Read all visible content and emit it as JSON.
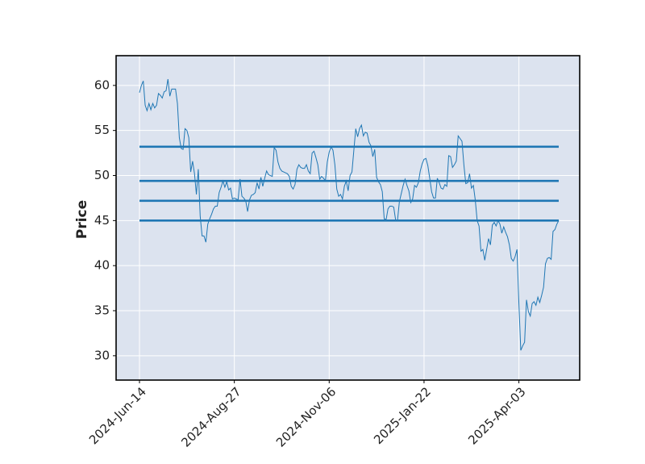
{
  "chart_data": {
    "type": "line",
    "ylabel": "Price",
    "categories": [
      "2024-Jun-14",
      null,
      null,
      null,
      null,
      null,
      null,
      null,
      null,
      null,
      null,
      null,
      null,
      null,
      null,
      null,
      null,
      null,
      null,
      null,
      null,
      null,
      null,
      null,
      null,
      null,
      null,
      null,
      null,
      null,
      null,
      null,
      null,
      null,
      null,
      null,
      null,
      null,
      null,
      null,
      null,
      null,
      null,
      null,
      null,
      null,
      null,
      null,
      null,
      null,
      "2024-Aug-27",
      null,
      null,
      null,
      null,
      null,
      null,
      null,
      null,
      null,
      null,
      null,
      null,
      null,
      null,
      null,
      null,
      null,
      null,
      null,
      null,
      null,
      null,
      null,
      null,
      null,
      null,
      null,
      null,
      null,
      null,
      null,
      null,
      null,
      null,
      null,
      null,
      null,
      null,
      null,
      null,
      null,
      null,
      null,
      null,
      null,
      null,
      null,
      null,
      null,
      "2024-Nov-06",
      null,
      null,
      null,
      null,
      null,
      null,
      null,
      null,
      null,
      null,
      null,
      null,
      null,
      null,
      null,
      null,
      null,
      null,
      null,
      null,
      null,
      null,
      null,
      null,
      null,
      null,
      null,
      null,
      null,
      null,
      null,
      null,
      null,
      null,
      null,
      null,
      null,
      null,
      null,
      null,
      null,
      null,
      null,
      null,
      null,
      null,
      null,
      null,
      null,
      "2025-Jan-22",
      null,
      null,
      null,
      null,
      null,
      null,
      null,
      null,
      null,
      null,
      null,
      null,
      null,
      null,
      null,
      null,
      null,
      null,
      null,
      null,
      null,
      null,
      null,
      null,
      null,
      null,
      null,
      null,
      null,
      null,
      null,
      null,
      null,
      null,
      null,
      null,
      null,
      null,
      null,
      null,
      null,
      null,
      null,
      null,
      null,
      null,
      null,
      null,
      null,
      "2025-Apr-03",
      null,
      null,
      null,
      null,
      null,
      null,
      null,
      null,
      null,
      null,
      null,
      null,
      null,
      null,
      null,
      null,
      null,
      null,
      null,
      null,
      null
    ],
    "series": [
      {
        "color": "#1f77b4",
        "values": [
          59.2,
          60.0,
          60.5,
          57.8,
          57.2,
          58.0,
          57.3,
          58.0,
          57.5,
          57.8,
          59.1,
          58.9,
          58.6,
          59.3,
          59.4,
          60.7,
          58.8,
          59.6,
          59.6,
          59.6,
          58.0,
          54.2,
          53.0,
          52.9,
          55.2,
          55.0,
          54.2,
          50.4,
          51.6,
          50.2,
          47.9,
          50.7,
          45.5,
          43.3,
          43.3,
          42.6,
          44.6,
          45.2,
          45.7,
          46.3,
          46.6,
          46.6,
          48.1,
          48.7,
          49.4,
          48.7,
          49.3,
          48.4,
          48.6,
          47.4,
          47.5,
          47.4,
          47.3,
          49.6,
          47.7,
          47.5,
          47.2,
          46.0,
          47.3,
          47.8,
          47.9,
          48.1,
          49.2,
          48.5,
          49.8,
          48.8,
          49.7,
          50.5,
          50.1,
          50.0,
          49.9,
          53.1,
          52.8,
          51.5,
          50.8,
          50.5,
          50.4,
          50.3,
          50.2,
          49.9,
          48.8,
          48.5,
          49.0,
          50.7,
          51.2,
          50.9,
          50.8,
          50.8,
          51.2,
          50.5,
          50.2,
          52.5,
          52.7,
          52.0,
          51.2,
          49.6,
          49.9,
          49.7,
          49.4,
          51.5,
          52.6,
          53.2,
          52.8,
          51.2,
          48.5,
          47.7,
          47.9,
          47.4,
          48.8,
          49.4,
          48.3,
          50.0,
          50.4,
          52.8,
          55.2,
          54.3,
          55.2,
          55.6,
          54.4,
          54.8,
          54.7,
          53.7,
          53.3,
          52.1,
          52.9,
          49.8,
          49.3,
          49.0,
          48.2,
          45.2,
          45.1,
          46.3,
          46.6,
          46.6,
          46.5,
          45.1,
          45.0,
          47.1,
          48.0,
          48.9,
          49.6,
          48.9,
          48.3,
          47.0,
          47.4,
          48.9,
          48.7,
          49.2,
          50.5,
          51.3,
          51.8,
          51.9,
          51.1,
          49.7,
          48.2,
          47.5,
          47.5,
          49.7,
          49.2,
          48.6,
          48.5,
          49.0,
          48.8,
          52.2,
          52.1,
          50.9,
          51.2,
          51.6,
          54.4,
          54.1,
          53.8,
          51.2,
          49.1,
          49.2,
          50.2,
          48.6,
          48.9,
          47.3,
          45.0,
          44.4,
          41.6,
          41.8,
          40.6,
          41.8,
          43.0,
          42.3,
          44.5,
          44.8,
          44.4,
          45.0,
          44.6,
          43.6,
          44.3,
          43.7,
          43.2,
          42.3,
          40.8,
          40.5,
          41.0,
          41.8,
          35.8,
          30.6,
          31.1,
          31.5,
          36.2,
          34.9,
          34.4,
          35.8,
          36.0,
          35.6,
          36.5,
          35.9,
          36.7,
          37.6,
          40.2,
          40.8,
          40.9,
          40.7,
          43.8,
          44.0,
          44.6,
          45.0
        ]
      }
    ],
    "hlines": {
      "color": "#1f77b4",
      "values": [
        53.2,
        49.4,
        47.2,
        45.0
      ]
    },
    "ylim": [
      27.3,
      63.3
    ],
    "yticks": [
      30,
      35,
      40,
      45,
      50,
      55,
      60
    ],
    "grid": true,
    "background": "#dce3ef"
  }
}
